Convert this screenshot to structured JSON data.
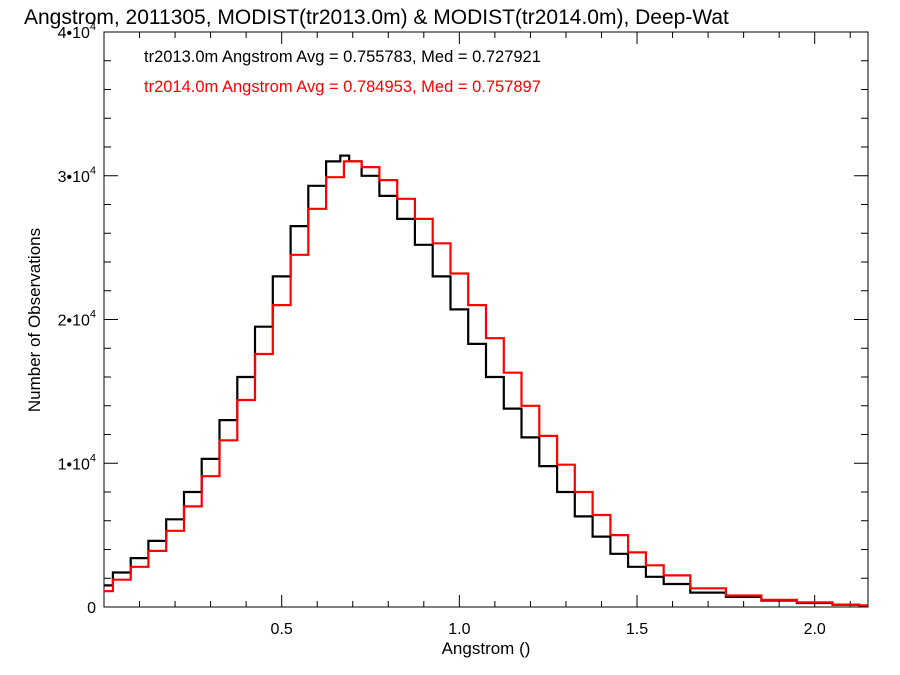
{
  "chart_data": {
    "type": "line",
    "title": "Angstrom, 2011305, MODIST(tr2013.0m) & MODIST(tr2014.0m), Deep-Wat",
    "xlabel": "Angstrom ()",
    "ylabel": "Number of Observations",
    "xlim": [
      0.0,
      2.15
    ],
    "ylim": [
      0,
      40000
    ],
    "x_ticks": [
      0.5,
      1.0,
      1.5,
      2.0
    ],
    "x_tick_labels": [
      "0.5",
      "1.0",
      "1.5",
      "2.0"
    ],
    "y_ticks": [
      0,
      10000,
      20000,
      30000,
      40000
    ],
    "y_tick_labels": [
      {
        "base": "0",
        "exp": ""
      },
      {
        "base": "1•10",
        "exp": "4"
      },
      {
        "base": "2•10",
        "exp": "4"
      },
      {
        "base": "3•10",
        "exp": "4"
      },
      {
        "base": "4•10",
        "exp": "4"
      }
    ],
    "grid": false,
    "legend_position": "top-left",
    "series": [
      {
        "name": "tr2013.0m",
        "color": "#000000",
        "stats_text": "tr2013.0m Angstrom Avg = 0.755783, Med = 0.727921",
        "points": [
          [
            0.0,
            1500
          ],
          [
            0.05,
            2400
          ],
          [
            0.1,
            3400
          ],
          [
            0.15,
            4600
          ],
          [
            0.2,
            6100
          ],
          [
            0.25,
            8000
          ],
          [
            0.3,
            10300
          ],
          [
            0.35,
            13000
          ],
          [
            0.4,
            16000
          ],
          [
            0.45,
            19500
          ],
          [
            0.5,
            23000
          ],
          [
            0.55,
            26500
          ],
          [
            0.6,
            29300
          ],
          [
            0.65,
            31000
          ],
          [
            0.68,
            31400
          ],
          [
            0.7,
            31000
          ],
          [
            0.75,
            30000
          ],
          [
            0.8,
            28600
          ],
          [
            0.85,
            27000
          ],
          [
            0.9,
            25200
          ],
          [
            0.95,
            23000
          ],
          [
            1.0,
            20700
          ],
          [
            1.05,
            18300
          ],
          [
            1.1,
            16000
          ],
          [
            1.15,
            13800
          ],
          [
            1.2,
            11800
          ],
          [
            1.25,
            9800
          ],
          [
            1.3,
            8000
          ],
          [
            1.35,
            6300
          ],
          [
            1.4,
            4900
          ],
          [
            1.45,
            3700
          ],
          [
            1.5,
            2800
          ],
          [
            1.55,
            2100
          ],
          [
            1.6,
            1600
          ],
          [
            1.7,
            1000
          ],
          [
            1.8,
            700
          ],
          [
            1.9,
            450
          ],
          [
            2.0,
            280
          ],
          [
            2.1,
            150
          ],
          [
            2.15,
            100
          ]
        ]
      },
      {
        "name": "tr2014.0m",
        "color": "#ff0000",
        "stats_text": "tr2014.0m Angstrom Avg = 0.784953, Med = 0.757897",
        "points": [
          [
            0.0,
            1100
          ],
          [
            0.05,
            1900
          ],
          [
            0.1,
            2800
          ],
          [
            0.15,
            3900
          ],
          [
            0.2,
            5300
          ],
          [
            0.25,
            7000
          ],
          [
            0.3,
            9100
          ],
          [
            0.35,
            11600
          ],
          [
            0.4,
            14400
          ],
          [
            0.45,
            17600
          ],
          [
            0.5,
            21000
          ],
          [
            0.55,
            24500
          ],
          [
            0.6,
            27700
          ],
          [
            0.65,
            29900
          ],
          [
            0.7,
            31000
          ],
          [
            0.75,
            30600
          ],
          [
            0.8,
            29700
          ],
          [
            0.85,
            28400
          ],
          [
            0.9,
            27000
          ],
          [
            0.95,
            25300
          ],
          [
            1.0,
            23200
          ],
          [
            1.05,
            21000
          ],
          [
            1.1,
            18700
          ],
          [
            1.15,
            16300
          ],
          [
            1.2,
            14000
          ],
          [
            1.25,
            11900
          ],
          [
            1.3,
            9900
          ],
          [
            1.35,
            8000
          ],
          [
            1.4,
            6400
          ],
          [
            1.45,
            5000
          ],
          [
            1.5,
            3800
          ],
          [
            1.55,
            2900
          ],
          [
            1.6,
            2200
          ],
          [
            1.7,
            1300
          ],
          [
            1.8,
            800
          ],
          [
            1.9,
            500
          ],
          [
            2.0,
            320
          ],
          [
            2.1,
            170
          ],
          [
            2.15,
            110
          ]
        ]
      }
    ]
  }
}
